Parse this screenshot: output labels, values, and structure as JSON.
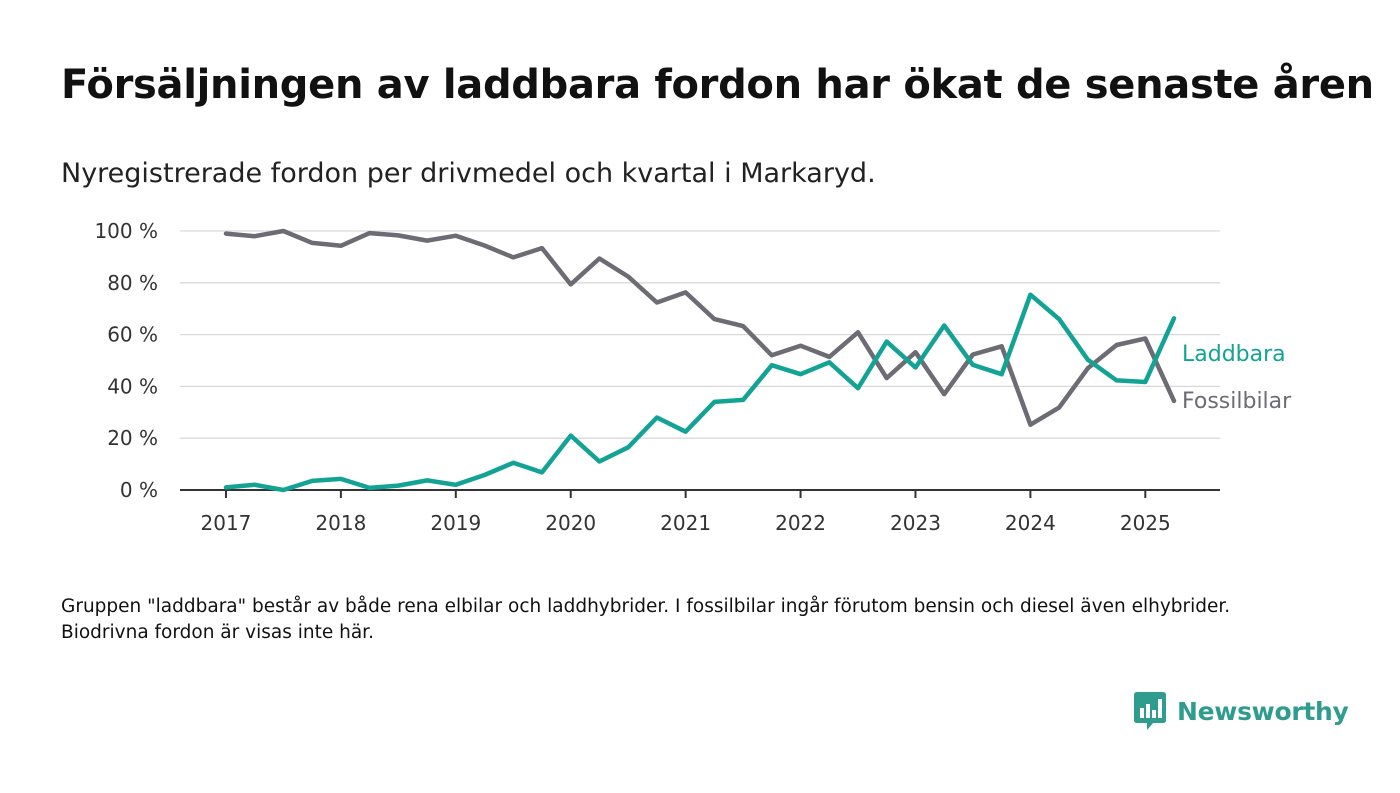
{
  "title": "Försäljningen av laddbara fordon har ökat de senaste åren",
  "subtitle": "Nyregistrerade fordon per drivmedel och kvartal i Markaryd.",
  "footnote": "Gruppen \"laddbara\" består av både rena elbilar och laddhybrider. I fossilbilar ingår förutom bensin och diesel även elhybrider. Biodrivna fordon är visas inte här.",
  "brand": {
    "name": "Newsworthy",
    "icon": "newsworthy-logo-icon",
    "color": "#2f9c8e"
  },
  "chart_data": {
    "type": "line",
    "x": [
      2017.0,
      2017.25,
      2017.5,
      2017.75,
      2018.0,
      2018.25,
      2018.5,
      2018.75,
      2019.0,
      2019.25,
      2019.5,
      2019.75,
      2020.0,
      2020.25,
      2020.5,
      2020.75,
      2021.0,
      2021.25,
      2021.5,
      2021.75,
      2022.0,
      2022.25,
      2022.5,
      2022.75,
      2023.0,
      2023.25,
      2023.5,
      2023.75,
      2024.0,
      2024.25,
      2024.5,
      2024.75,
      2025.0,
      2025.25
    ],
    "series": [
      {
        "name": "Laddbara",
        "color": "#13a394",
        "values": [
          1,
          2,
          0,
          3.5,
          4.3,
          0.8,
          1.7,
          3.7,
          2,
          5.8,
          10.5,
          6.8,
          21,
          11,
          16.5,
          28,
          22.5,
          34,
          34.8,
          48.2,
          44.7,
          49.3,
          39.3,
          57.3,
          47.3,
          63.5,
          48.3,
          44.7,
          75.4,
          66,
          50.3,
          42.3,
          41.7,
          66.3
        ]
      },
      {
        "name": "Fossilbilar",
        "color": "#6d6b73",
        "values": [
          99,
          98,
          100,
          95.4,
          94.3,
          99.2,
          98.3,
          96.3,
          98.2,
          94.4,
          89.8,
          93.4,
          79.4,
          89.4,
          82.4,
          72.4,
          76.3,
          66,
          63.3,
          52,
          55.7,
          51.4,
          60.9,
          43.2,
          53.2,
          37,
          52.3,
          55.5,
          25.2,
          31.8,
          47,
          56,
          58.5,
          34.4
        ]
      }
    ],
    "x_ticks": [
      "2017",
      "2018",
      "2019",
      "2020",
      "2021",
      "2022",
      "2023",
      "2024",
      "2025"
    ],
    "y_ticks": [
      "0 %",
      "20 %",
      "40 %",
      "60 %",
      "80 %",
      "100 %"
    ],
    "ylim": [
      0,
      100
    ],
    "xlim": [
      2016.6,
      2025.65
    ],
    "grid": true,
    "legend": "inline-right"
  }
}
